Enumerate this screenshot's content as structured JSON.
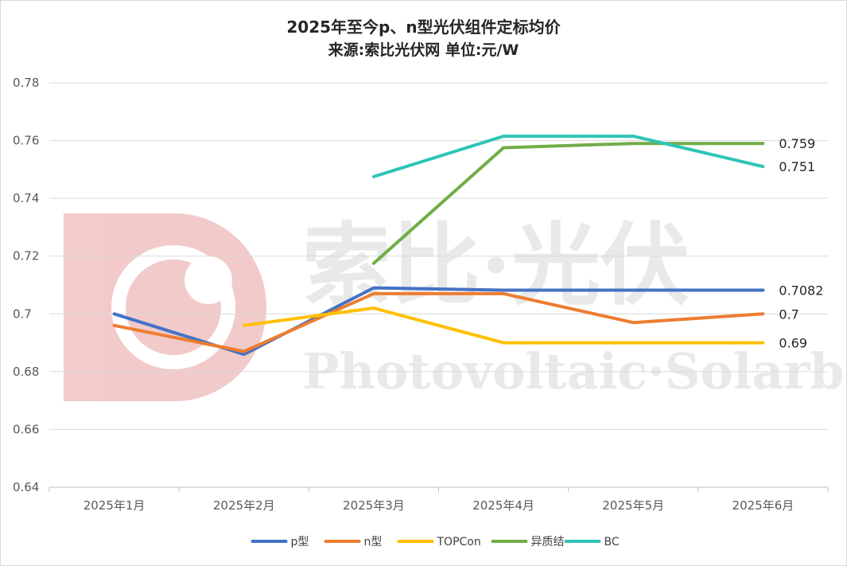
{
  "title_line1": "2025年至今p、n型光伏组件定标均价",
  "title_line2": "来源:索比光伏网 单位:元/W",
  "watermark": {
    "cn": "索比·光伏",
    "en": "Photovoltaic·Solarbe"
  },
  "colors": {
    "p型": "#4472C4",
    "n型": "#ED7D31",
    "TOPCon": "#FFC000",
    "异质结": "#70AD47",
    "BC": "#2EC4B6",
    "grid": "#d9d9d9",
    "logo": "#e8a0a0"
  },
  "chart_data": {
    "type": "line",
    "title": "2025年至今p、n型光伏组件定标均价",
    "subtitle": "来源:索比光伏网 单位:元/W",
    "categories": [
      "2025年1月",
      "2025年2月",
      "2025年3月",
      "2025年4月",
      "2025年5月",
      "2025年6月"
    ],
    "ylim": [
      0.64,
      0.78
    ],
    "yticks": [
      0.64,
      0.66,
      0.68,
      0.7,
      0.72,
      0.74,
      0.76,
      0.78
    ],
    "ytick_labels": [
      "0.64",
      "0.66",
      "0.68",
      "0.7",
      "0.72",
      "0.74",
      "0.76",
      "0.78"
    ],
    "grid": true,
    "legend_position": "bottom",
    "series": [
      {
        "name": "p型",
        "values": [
          0.7,
          0.686,
          0.709,
          0.7082,
          0.7082,
          0.7082
        ],
        "end_label": "0.7082"
      },
      {
        "name": "n型",
        "values": [
          0.696,
          0.687,
          0.707,
          0.707,
          0.697,
          0.7
        ],
        "end_label": "0.7"
      },
      {
        "name": "TOPCon",
        "values": [
          null,
          0.696,
          0.702,
          0.69,
          0.69,
          0.69
        ],
        "end_label": "0.69"
      },
      {
        "name": "异质结",
        "values": [
          null,
          null,
          0.7175,
          0.7575,
          0.759,
          0.759
        ],
        "end_label": "0.759"
      },
      {
        "name": "BC",
        "values": [
          null,
          null,
          0.7475,
          0.7615,
          0.7615,
          0.751
        ],
        "end_label": "0.751"
      }
    ]
  }
}
